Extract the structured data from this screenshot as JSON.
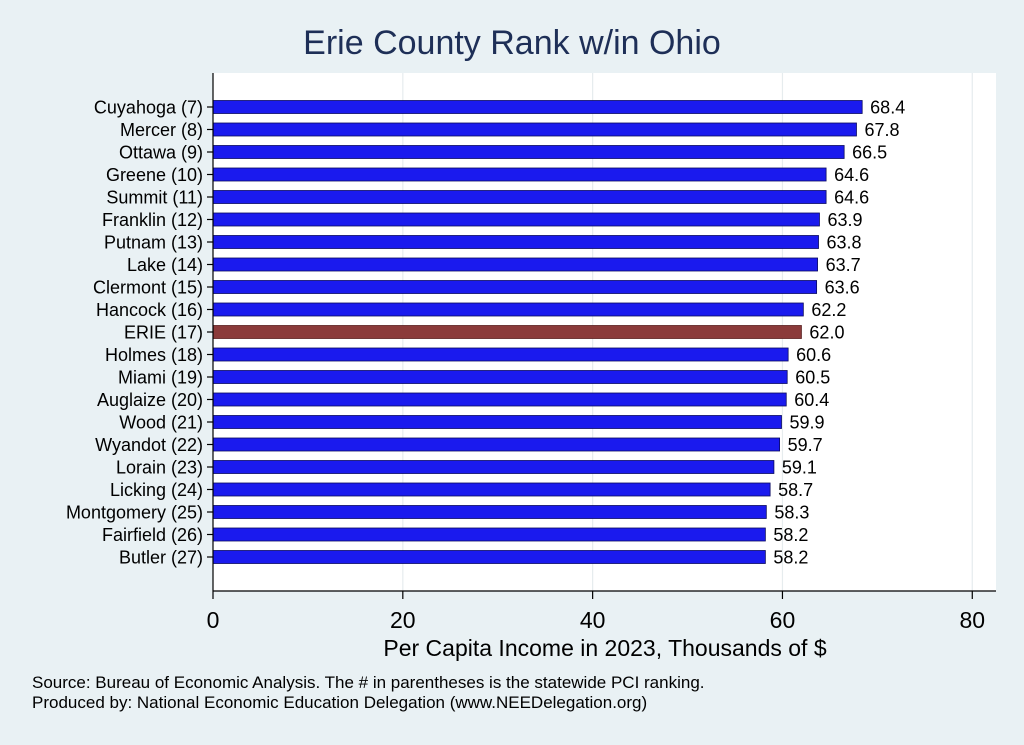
{
  "chart_data": {
    "type": "bar",
    "orientation": "horizontal",
    "title": "Erie County Rank w/in Ohio",
    "xlabel": "Per Capita Income in 2023, Thousands of $",
    "ylabel": "",
    "xlim": [
      0,
      82.5
    ],
    "xticks": [
      "0",
      "20",
      "40",
      "60",
      "80"
    ],
    "xtick_values": [
      0,
      20,
      40,
      60,
      80
    ],
    "categories": [
      "Cuyahoga  (7)",
      "Mercer  (8)",
      "Ottawa  (9)",
      "Greene (10)",
      "Summit (11)",
      "Franklin (12)",
      "Putnam (13)",
      "Lake (14)",
      "Clermont (15)",
      "Hancock (16)",
      "ERIE (17)",
      "Holmes (18)",
      "Miami (19)",
      "Auglaize (20)",
      "Wood (21)",
      "Wyandot (22)",
      "Lorain (23)",
      "Licking (24)",
      "Montgomery (25)",
      "Fairfield (26)",
      "Butler (27)"
    ],
    "values": [
      68.4,
      67.8,
      66.5,
      64.6,
      64.6,
      63.9,
      63.8,
      63.7,
      63.6,
      62.2,
      62.0,
      60.6,
      60.5,
      60.4,
      59.9,
      59.7,
      59.1,
      58.7,
      58.3,
      58.2,
      58.2
    ],
    "value_labels": [
      "68.4",
      "67.8",
      "66.5",
      "64.6",
      "64.6",
      "63.9",
      "63.8",
      "63.7",
      "63.6",
      "62.2",
      "62.0",
      "60.6",
      "60.5",
      "60.4",
      "59.9",
      "59.7",
      "59.1",
      "58.7",
      "58.3",
      "58.2",
      "58.2"
    ],
    "highlight_category": "ERIE (17)",
    "bar_color": "#1a1aee",
    "highlight_color": "#8b3a3a",
    "grid": true
  },
  "notes": {
    "source": "Source: Bureau of Economic Analysis. The # in parentheses is the statewide PCI ranking.",
    "produced_by": "Produced by: National Economic Education Delegation (www.NEEDelegation.org)"
  }
}
